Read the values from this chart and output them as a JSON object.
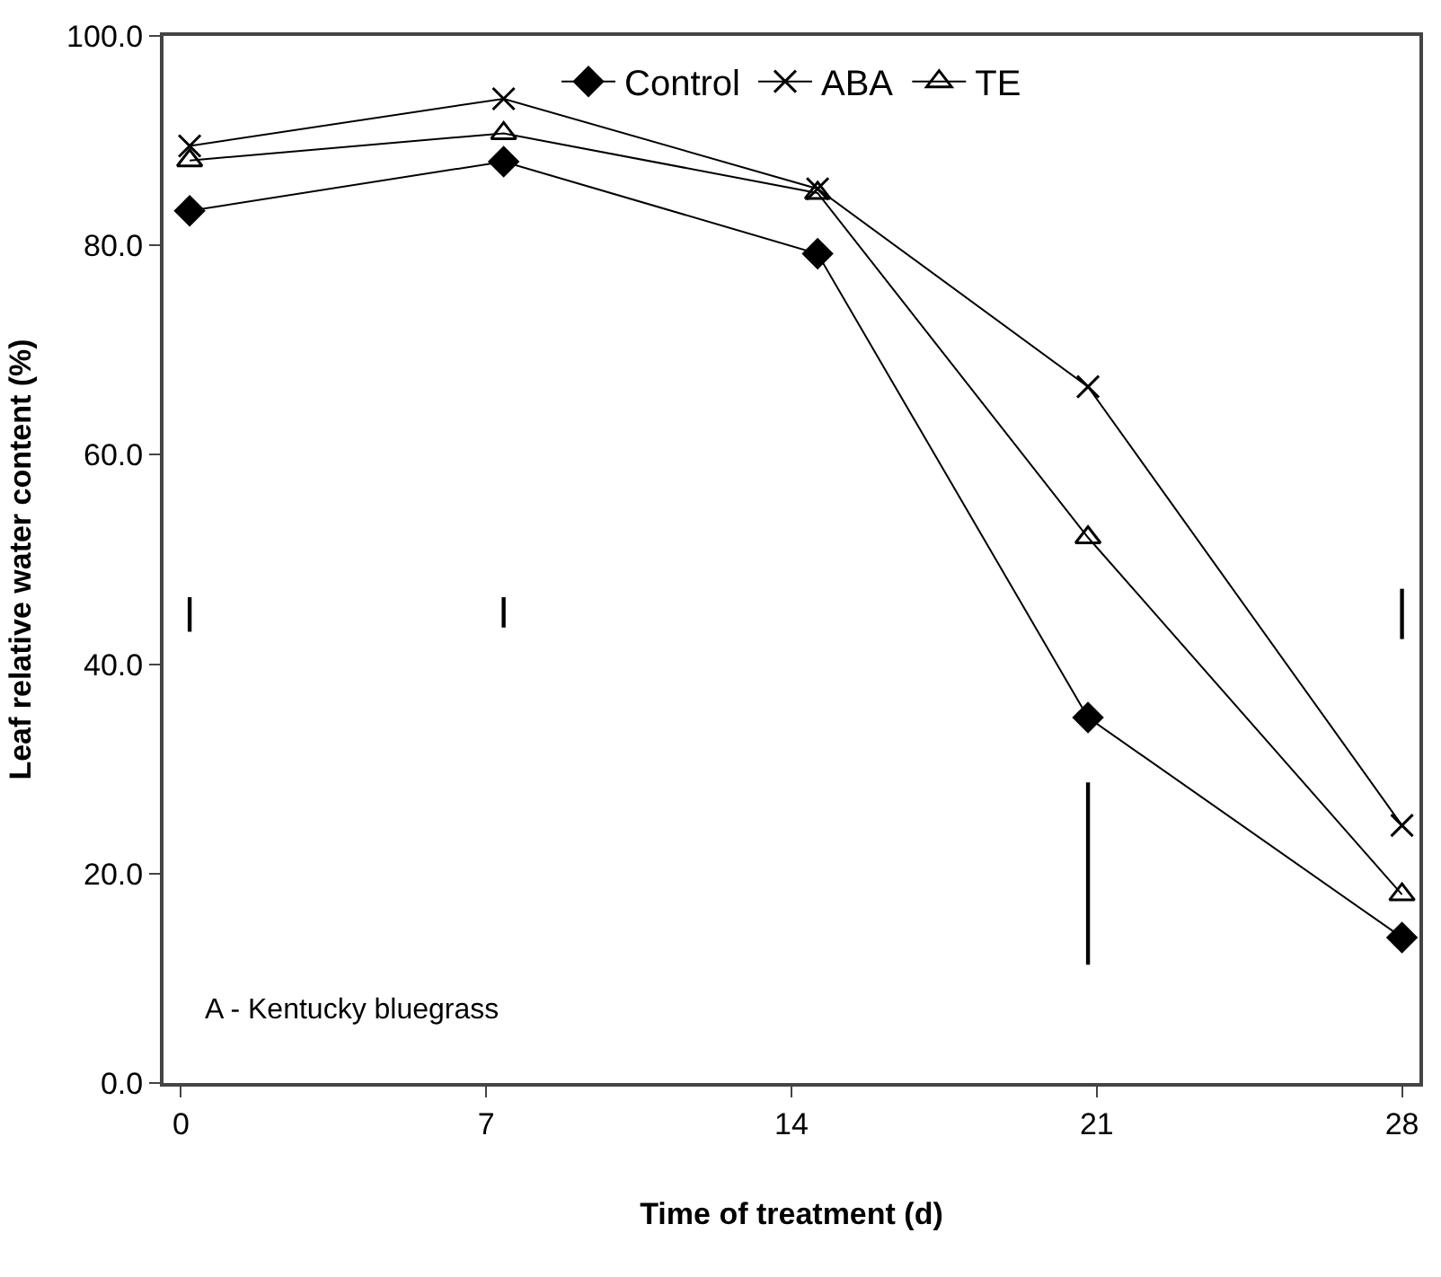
{
  "chart_data": {
    "type": "line",
    "xlabel": "Time of treatment (d)",
    "ylabel": "Leaf relative water content (%)",
    "x": [
      0.2,
      7.4,
      14.6,
      20.8,
      28.0
    ],
    "xlim": [
      -0.4,
      28.4
    ],
    "xticks": [
      0,
      7,
      14,
      21,
      28
    ],
    "ylim": [
      0,
      100
    ],
    "yticks": [
      {
        "value": 0,
        "label": "0.0"
      },
      {
        "value": 20,
        "label": "20.0"
      },
      {
        "value": 40,
        "label": "40.0"
      },
      {
        "value": 60,
        "label": "60.0"
      },
      {
        "value": 80,
        "label": "80.0"
      },
      {
        "value": 100,
        "label": "100.0"
      }
    ],
    "series": [
      {
        "name": "Control",
        "color": "#000000",
        "marker": "diamond",
        "values": [
          83.3,
          88.0,
          79.2,
          34.9,
          13.9
        ]
      },
      {
        "name": "ABA",
        "color": "#000000",
        "marker": "cross",
        "values": [
          89.5,
          94.0,
          85.4,
          66.5,
          24.6
        ]
      },
      {
        "name": "TE",
        "color": "#000000",
        "marker": "triangle",
        "values": [
          88.1,
          90.7,
          85.0,
          52.1,
          18.0
        ]
      },
      {
        "type": "bar",
        "color": "#000000",
        "x": [
          0.2,
          7.4,
          20.8,
          28.0
        ],
        "base": [
          43.1,
          43.5,
          11.3,
          42.4
        ],
        "values": [
          3.3,
          2.9,
          17.4,
          4.8
        ]
      }
    ],
    "annotations": [
      {
        "text": "A - Kentucky bluegrass"
      }
    ],
    "legend": "top"
  }
}
